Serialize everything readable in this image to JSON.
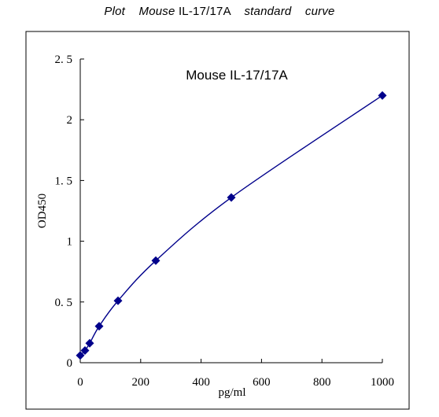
{
  "page": {
    "title_plot": "Plot",
    "title_mouse": "Mouse",
    "title_antigen": "IL-17/17A",
    "title_standard": "standard",
    "title_curve": "curve"
  },
  "chart_data": {
    "type": "scatter",
    "title": "Mouse IL-17/17A",
    "xlabel": "pg/ml",
    "ylabel": "OD450",
    "xlim": [
      0,
      1000
    ],
    "ylim": [
      0,
      2.5
    ],
    "xticks": [
      0,
      200,
      400,
      600,
      800,
      1000
    ],
    "xtick_labels": [
      "0",
      "200",
      "400",
      "600",
      "800",
      "1000"
    ],
    "yticks": [
      0,
      0.5,
      1,
      1.5,
      2,
      2.5
    ],
    "ytick_labels": [
      "0",
      "0. 5",
      "1",
      "1. 5",
      "2",
      "2. 5"
    ],
    "grid": false,
    "series": [
      {
        "x": [
          0,
          15.6,
          31.25,
          62.5,
          125,
          250,
          500,
          1000
        ],
        "y": [
          0.06,
          0.1,
          0.16,
          0.3,
          0.51,
          0.84,
          1.36,
          2.2
        ],
        "marker": "diamond",
        "color": "#00008b",
        "fit_line": true
      }
    ]
  }
}
